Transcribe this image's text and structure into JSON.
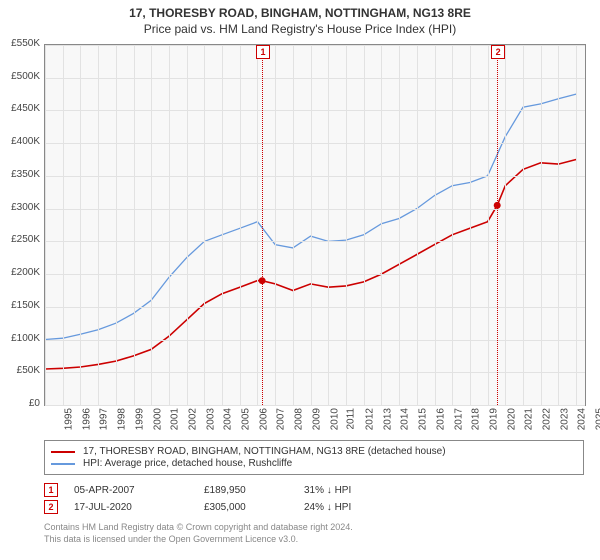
{
  "title1": "17, THORESBY ROAD, BINGHAM, NOTTINGHAM, NG13 8RE",
  "title2": "Price paid vs. HM Land Registry's House Price Index (HPI)",
  "chart": {
    "type": "line",
    "background_color": "#f8f8f8",
    "grid_color": "#e2e2e2",
    "border_color": "#888888",
    "xlim": [
      1995,
      2025.5
    ],
    "ylim": [
      0,
      550000
    ],
    "ytick_step": 50000,
    "yticks": [
      "£0",
      "£50K",
      "£100K",
      "£150K",
      "£200K",
      "£250K",
      "£300K",
      "£350K",
      "£400K",
      "£450K",
      "£500K",
      "£550K"
    ],
    "xticks": [
      1995,
      1996,
      1997,
      1998,
      1999,
      2000,
      2001,
      2002,
      2003,
      2004,
      2005,
      2006,
      2007,
      2008,
      2009,
      2010,
      2011,
      2012,
      2013,
      2014,
      2015,
      2016,
      2017,
      2018,
      2019,
      2020,
      2021,
      2022,
      2023,
      2024,
      2025
    ],
    "label_fontsize": 10,
    "series": [
      {
        "name": "17, THORESBY ROAD, BINGHAM, NOTTINGHAM, NG13 8RE (detached house)",
        "color": "#cc0000",
        "line_width": 1.6,
        "points": [
          [
            1995,
            55000
          ],
          [
            1996,
            56000
          ],
          [
            1997,
            58000
          ],
          [
            1998,
            62000
          ],
          [
            1999,
            67000
          ],
          [
            2000,
            75000
          ],
          [
            2001,
            85000
          ],
          [
            2002,
            105000
          ],
          [
            2003,
            130000
          ],
          [
            2004,
            155000
          ],
          [
            2005,
            170000
          ],
          [
            2006,
            180000
          ],
          [
            2007,
            190000
          ],
          [
            2007.26,
            189950
          ],
          [
            2008,
            185000
          ],
          [
            2009,
            175000
          ],
          [
            2010,
            185000
          ],
          [
            2011,
            180000
          ],
          [
            2012,
            182000
          ],
          [
            2013,
            188000
          ],
          [
            2014,
            200000
          ],
          [
            2015,
            215000
          ],
          [
            2016,
            230000
          ],
          [
            2017,
            245000
          ],
          [
            2018,
            260000
          ],
          [
            2019,
            270000
          ],
          [
            2020,
            280000
          ],
          [
            2020.54,
            305000
          ],
          [
            2021,
            335000
          ],
          [
            2022,
            360000
          ],
          [
            2023,
            370000
          ],
          [
            2024,
            368000
          ],
          [
            2025,
            375000
          ]
        ]
      },
      {
        "name": "HPI: Average price, detached house, Rushcliffe",
        "color": "#6699dd",
        "line_width": 1.3,
        "points": [
          [
            1995,
            100000
          ],
          [
            1996,
            102000
          ],
          [
            1997,
            108000
          ],
          [
            1998,
            115000
          ],
          [
            1999,
            125000
          ],
          [
            2000,
            140000
          ],
          [
            2001,
            160000
          ],
          [
            2002,
            195000
          ],
          [
            2003,
            225000
          ],
          [
            2004,
            250000
          ],
          [
            2005,
            260000
          ],
          [
            2006,
            270000
          ],
          [
            2007,
            280000
          ],
          [
            2008,
            245000
          ],
          [
            2009,
            240000
          ],
          [
            2010,
            258000
          ],
          [
            2011,
            250000
          ],
          [
            2012,
            252000
          ],
          [
            2013,
            260000
          ],
          [
            2014,
            277000
          ],
          [
            2015,
            285000
          ],
          [
            2016,
            300000
          ],
          [
            2017,
            320000
          ],
          [
            2018,
            335000
          ],
          [
            2019,
            340000
          ],
          [
            2020,
            350000
          ],
          [
            2021,
            410000
          ],
          [
            2022,
            455000
          ],
          [
            2023,
            460000
          ],
          [
            2024,
            468000
          ],
          [
            2025,
            475000
          ]
        ]
      }
    ],
    "markers": [
      {
        "id": "1",
        "x": 2007.26,
        "y": 189950,
        "color": "#cc0000"
      },
      {
        "id": "2",
        "x": 2020.54,
        "y": 305000,
        "color": "#cc0000"
      }
    ]
  },
  "transactions": [
    {
      "id": "1",
      "date": "05-APR-2007",
      "price": "£189,950",
      "hpi": "31% ↓ HPI"
    },
    {
      "id": "2",
      "date": "17-JUL-2020",
      "price": "£305,000",
      "hpi": "24% ↓ HPI"
    }
  ],
  "footer1": "Contains HM Land Registry data © Crown copyright and database right 2024.",
  "footer2": "This data is licensed under the Open Government Licence v3.0."
}
